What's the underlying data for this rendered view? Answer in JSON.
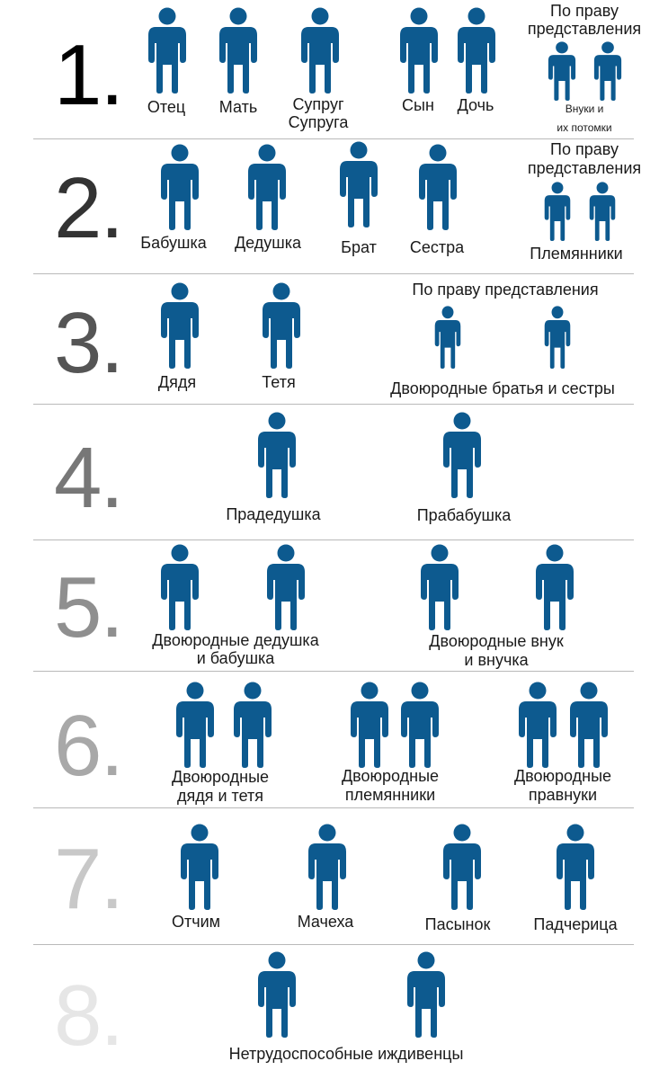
{
  "colors": {
    "figure": "#0d5a8f",
    "divider": "#b9b9b9"
  },
  "icon": "person-icon",
  "groups": [
    {
      "number": "1.",
      "labels": [
        "Отец",
        "Мать",
        "Супруг",
        "Супруга",
        "Сын",
        "Дочь"
      ],
      "representation": {
        "title_line1": "По праву",
        "title_line2": "представления",
        "note_line1": "Внуки и",
        "note_line2": "их потомки"
      }
    },
    {
      "number": "2.",
      "labels": [
        "Бабушка",
        "Дедушка",
        "Брат",
        "Сестра"
      ],
      "representation": {
        "title_line1": "По праву",
        "title_line2": "представления",
        "label": "Племянники"
      }
    },
    {
      "number": "3.",
      "labels": [
        "Дядя",
        "Тетя"
      ],
      "representation": {
        "title": "По праву представления",
        "label": "Двоюродные братья и сестры"
      }
    },
    {
      "number": "4.",
      "labels": [
        "Прадедушка",
        "Прабабушка"
      ]
    },
    {
      "number": "5.",
      "labels": [
        "Двоюродные дедушка",
        "и бабушка",
        "Двоюродные внук",
        "и внучка"
      ]
    },
    {
      "number": "6.",
      "labels": [
        "Двоюродные",
        "дядя и тетя",
        "Двоюродные",
        "племянники",
        "Двоюродные",
        "правнуки"
      ]
    },
    {
      "number": "7.",
      "labels": [
        "Отчим",
        "Мачеха",
        "Пасынок",
        "Падчерица"
      ]
    },
    {
      "number": "8.",
      "labels": [
        "Нетрудоспособные иждивенцы"
      ]
    }
  ]
}
